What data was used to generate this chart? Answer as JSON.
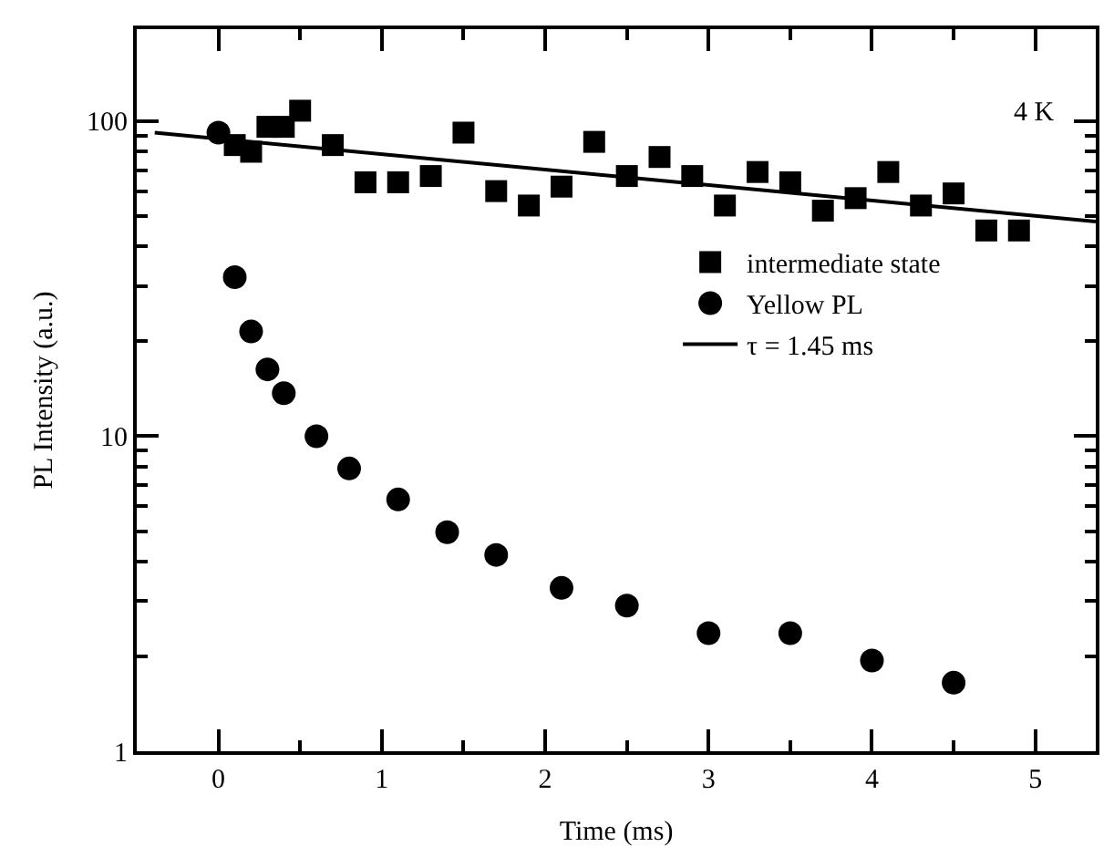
{
  "chart_data": {
    "type": "scatter",
    "xlabel": "Time (ms)",
    "ylabel": "PL Intensity (a.u.)",
    "log": "y",
    "legend": "right",
    "annotations": [
      "4 K"
    ],
    "xlim": [
      -0.5,
      5.37
    ],
    "ylim": [
      1,
      196
    ],
    "xticks": [
      0,
      1,
      2,
      3,
      4,
      5,
      {
        "value": 0.5,
        "label": null
      },
      {
        "value": 1.5,
        "label": null
      },
      {
        "value": 2.5,
        "label": null
      },
      {
        "value": 3.5,
        "label": null
      },
      {
        "value": 4.5,
        "label": null
      }
    ],
    "yticks": [
      1,
      10,
      100,
      {
        "value": 2,
        "label": null
      },
      {
        "value": 3,
        "label": null
      },
      {
        "value": 4,
        "label": null
      },
      {
        "value": 5,
        "label": null
      },
      {
        "value": 6,
        "label": null
      },
      {
        "value": 7,
        "label": null
      },
      {
        "value": 8,
        "label": null
      },
      {
        "value": 9,
        "label": null
      },
      {
        "value": 20,
        "label": null
      },
      {
        "value": 30,
        "label": null
      },
      {
        "value": 40,
        "label": null
      },
      {
        "value": 50,
        "label": null
      },
      {
        "value": 60,
        "label": null
      },
      {
        "value": 70,
        "label": null
      },
      {
        "value": 80,
        "label": null
      },
      {
        "value": 90,
        "label": null
      }
    ],
    "series": [
      {
        "name": "intermediate state",
        "color": "#000000",
        "marker": "square",
        "x": [
          0.1,
          0.2,
          0.3,
          0.4,
          0.5,
          0.7,
          0.9,
          1.1,
          1.3,
          1.5,
          1.7,
          1.9,
          2.1,
          2.3,
          2.5,
          2.7,
          2.9,
          3.1,
          3.3,
          3.5,
          3.7,
          3.9,
          4.1,
          4.3,
          4.5,
          4.7,
          4.9
        ],
        "values": [
          84,
          80,
          96,
          96,
          108,
          84,
          64,
          64,
          67,
          92,
          60,
          54,
          62,
          86,
          67,
          77,
          67,
          54,
          69,
          64,
          52,
          57,
          69,
          54,
          59,
          45,
          45
        ]
      },
      {
        "name": "Yellow PL",
        "color": "#000000",
        "marker": "circle",
        "x": [
          0,
          0.1,
          0.2,
          0.3,
          0.4,
          0.6,
          0.8,
          1.1,
          1.4,
          1.7,
          2.1,
          2.5,
          3.0,
          3.5,
          4.0,
          4.5
        ],
        "values": [
          92,
          32,
          21.5,
          16.3,
          13.7,
          10,
          7.9,
          6.3,
          4.96,
          4.2,
          3.3,
          2.9,
          2.37,
          2.37,
          1.94,
          1.65
        ]
      },
      {
        "name": "τ = 1.45 ms",
        "type": "line",
        "color": "#000000",
        "line_style": "solid",
        "marker": "none",
        "x": [
          -0.39,
          5.37
        ],
        "values": [
          92,
          48
        ]
      }
    ]
  }
}
